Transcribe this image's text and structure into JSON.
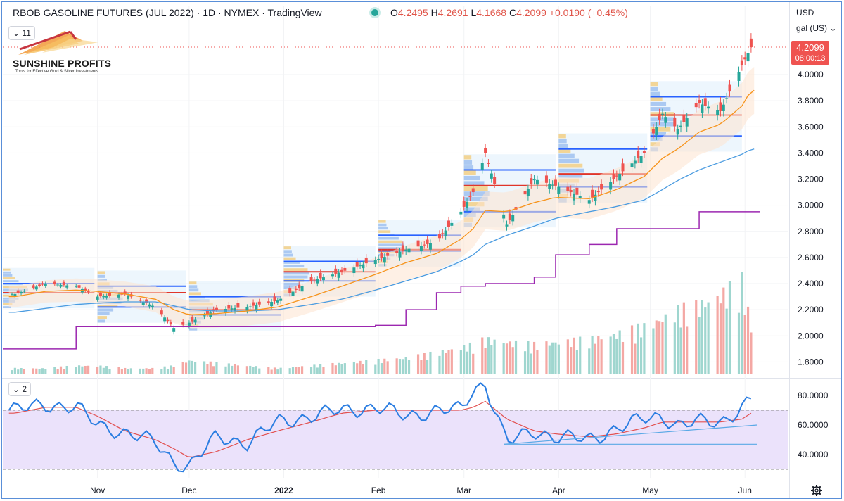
{
  "header": {
    "title": "RBOB GASOLINE FUTURES (JUL 2022) · 1D · NYMEX · TradingView",
    "open_label": "O",
    "open": "4.2495",
    "high_label": "H",
    "high": "4.2691",
    "low_label": "L",
    "low": "4.1668",
    "close_label": "C",
    "close": "4.2099",
    "change": "+0.0190 (+0.45%)"
  },
  "indicator_pills": {
    "main": "11",
    "rsi": "2"
  },
  "logo": {
    "name": "SUNSHINE PROFITS",
    "tagline": "Tools for Effective Gold & Silver Investments"
  },
  "axis_units": {
    "currency": "USD",
    "unit": "gal (US)"
  },
  "price_tag": {
    "price": "4.2099",
    "countdown": "08:00:13"
  },
  "colors": {
    "up": "#26a69a",
    "down": "#ef5350",
    "ema": "#f7931a",
    "sma": "#4a9be0",
    "stop_line": "#9c27b0",
    "rsi_line": "#2a7de1",
    "rsi_signal": "#e25151",
    "rsi_band": "#ebe2fb",
    "vp_line_blue": "#2962ff",
    "vp_poc_red": "#e0352a"
  },
  "icons": {
    "settings": "gear-icon"
  },
  "chart_data": [
    {
      "type": "candlestick",
      "title": "RBOB Gasoline Futures (Jul 2022) daily",
      "yaxis_ticks": [
        "4.0000",
        "3.8000",
        "3.6000",
        "3.4000",
        "3.2000",
        "3.0000",
        "2.8000",
        "2.6000",
        "2.4000",
        "2.2000",
        "2.0000",
        "1.8000"
      ],
      "ylim": [
        1.68,
        4.48
      ],
      "xaxis_ticks": [
        "Nov",
        "Dec",
        "2022",
        "Feb",
        "Mar",
        "Apr",
        "May",
        "Jun"
      ],
      "x": [
        "2021-10-05",
        "2021-10-15",
        "2021-10-25",
        "2021-11-01",
        "2021-11-10",
        "2021-11-20",
        "2021-11-26",
        "2021-12-01",
        "2021-12-10",
        "2021-12-20",
        "2021-12-30",
        "2022-01-10",
        "2022-01-20",
        "2022-01-31",
        "2022-02-10",
        "2022-02-20",
        "2022-02-28",
        "2022-03-04",
        "2022-03-08",
        "2022-03-15",
        "2022-03-24",
        "2022-03-31",
        "2022-04-11",
        "2022-04-20",
        "2022-04-29",
        "2022-05-05",
        "2022-05-10",
        "2022-05-17",
        "2022-05-24",
        "2022-05-31",
        "2022-06-03"
      ],
      "close": [
        2.32,
        2.4,
        2.38,
        2.3,
        2.32,
        2.22,
        2.06,
        2.1,
        2.2,
        2.22,
        2.27,
        2.42,
        2.49,
        2.58,
        2.66,
        2.72,
        2.95,
        3.1,
        3.4,
        2.85,
        3.2,
        3.15,
        3.04,
        3.22,
        3.4,
        3.7,
        3.58,
        3.78,
        3.72,
        4.07,
        4.21
      ],
      "series": [
        {
          "name": "EMA",
          "values": [
            2.3,
            2.34,
            2.35,
            2.34,
            2.32,
            2.28,
            2.2,
            2.16,
            2.17,
            2.19,
            2.22,
            2.3,
            2.38,
            2.47,
            2.56,
            2.63,
            2.74,
            2.82,
            2.96,
            2.95,
            3.02,
            3.06,
            3.05,
            3.12,
            3.22,
            3.36,
            3.43,
            3.56,
            3.62,
            3.76,
            3.88
          ]
        },
        {
          "name": "SMA",
          "values": [
            2.18,
            2.21,
            2.24,
            2.25,
            2.26,
            2.26,
            2.23,
            2.2,
            2.19,
            2.19,
            2.2,
            2.24,
            2.28,
            2.35,
            2.42,
            2.49,
            2.57,
            2.62,
            2.7,
            2.77,
            2.84,
            2.9,
            2.95,
            2.99,
            3.04,
            3.12,
            3.19,
            3.27,
            3.33,
            3.39,
            3.43
          ]
        },
        {
          "name": "Trailing stop",
          "values": [
            1.9,
            1.9,
            2.07,
            2.07,
            2.07,
            2.07,
            2.07,
            2.07,
            2.07,
            2.07,
            2.07,
            2.07,
            2.07,
            2.08,
            2.2,
            2.33,
            2.38,
            2.38,
            2.4,
            2.4,
            2.45,
            2.62,
            2.7,
            2.82,
            2.82,
            2.82,
            2.82,
            2.95,
            2.95,
            2.95,
            2.95
          ]
        }
      ],
      "volume_profile_zones": [
        {
          "from": "2021-10-01",
          "to": "2021-10-31",
          "top": 2.4,
          "poc": 2.33,
          "bottom": 2.33
        },
        {
          "from": "2021-11-01",
          "to": "2021-11-30",
          "top": 2.38,
          "poc": 2.33,
          "bottom": 2.22
        },
        {
          "from": "2021-12-01",
          "to": "2021-12-31",
          "top": 2.3,
          "poc": 2.2,
          "bottom": 2.16
        },
        {
          "from": "2022-01-01",
          "to": "2022-01-31",
          "top": 2.57,
          "poc": 2.49,
          "bottom": 2.42
        },
        {
          "from": "2022-02-01",
          "to": "2022-02-28",
          "top": 2.77,
          "poc": 2.66,
          "bottom": 2.65
        },
        {
          "from": "2022-03-01",
          "to": "2022-03-31",
          "top": 3.27,
          "poc": 3.15,
          "bottom": 2.95
        },
        {
          "from": "2022-04-01",
          "to": "2022-04-30",
          "top": 3.43,
          "poc": 3.24,
          "bottom": 3.14
        },
        {
          "from": "2022-05-01",
          "to": "2022-05-31",
          "top": 3.83,
          "poc": 3.69,
          "bottom": 3.53
        }
      ],
      "current_price": 4.2099
    },
    {
      "type": "bar",
      "title": "Volume",
      "values": [
        2,
        2,
        3,
        3,
        2,
        2,
        3,
        5,
        4,
        3,
        2,
        3,
        4,
        5,
        6,
        8,
        10,
        11,
        13,
        12,
        11,
        12,
        13,
        15,
        18,
        21,
        24,
        26,
        30,
        35,
        18
      ]
    },
    {
      "type": "line",
      "title": "RSI",
      "yaxis_ticks": [
        "80.0000",
        "60.0000",
        "40.0000"
      ],
      "ylim": [
        28,
        92
      ],
      "band": [
        30,
        70
      ],
      "x": [
        "2021-10-05",
        "2021-10-15",
        "2021-10-25",
        "2021-11-01",
        "2021-11-10",
        "2021-11-20",
        "2021-11-26",
        "2021-12-01",
        "2021-12-10",
        "2021-12-20",
        "2021-12-30",
        "2022-01-10",
        "2022-01-20",
        "2022-01-31",
        "2022-02-10",
        "2022-02-20",
        "2022-02-28",
        "2022-03-04",
        "2022-03-08",
        "2022-03-15",
        "2022-03-24",
        "2022-03-31",
        "2022-04-11",
        "2022-04-20",
        "2022-04-29",
        "2022-05-05",
        "2022-05-10",
        "2022-05-17",
        "2022-05-24",
        "2022-05-31",
        "2022-06-03"
      ],
      "series": [
        {
          "name": "RSI",
          "values": [
            70,
            74,
            72,
            60,
            55,
            48,
            35,
            32,
            52,
            48,
            62,
            66,
            70,
            72,
            66,
            70,
            70,
            84,
            88,
            48,
            56,
            52,
            50,
            58,
            64,
            66,
            60,
            62,
            62,
            72,
            77
          ]
        },
        {
          "name": "Signal",
          "values": [
            68,
            72,
            72,
            66,
            56,
            50,
            44,
            38,
            42,
            50,
            56,
            62,
            68,
            70,
            70,
            70,
            70,
            72,
            76,
            64,
            56,
            54,
            52,
            54,
            58,
            62,
            62,
            62,
            62,
            64,
            68
          ]
        }
      ]
    }
  ]
}
